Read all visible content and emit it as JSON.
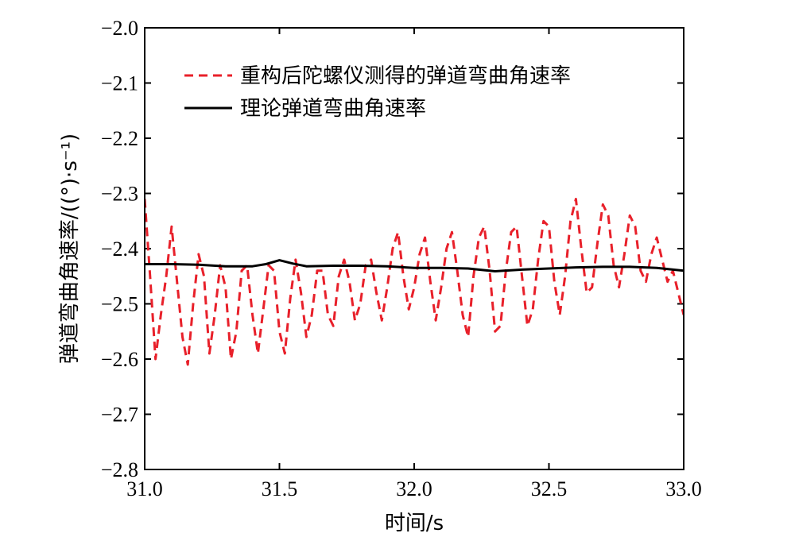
{
  "chart_data": {
    "type": "line",
    "title": "",
    "xlabel": "时间/s",
    "ylabel": "弹道弯曲角速率/((°)·s⁻¹)",
    "xlim": [
      31.0,
      33.0
    ],
    "ylim": [
      -2.8,
      -2.0
    ],
    "x_ticks": [
      "31.0",
      "31.5",
      "32.0",
      "32.5",
      "33.0"
    ],
    "y_ticks": [
      "−2.0",
      "−2.1",
      "−2.2",
      "−2.3",
      "−2.4",
      "−2.5",
      "−2.6",
      "−2.7",
      "−2.8"
    ],
    "grid": false,
    "legend_position": "top-right",
    "series": [
      {
        "name": "重构后陀螺仪测得的弹道弯曲角速率",
        "color": "#e8202a",
        "style": "dashed",
        "x": [
          31.0,
          31.02,
          31.04,
          31.06,
          31.08,
          31.1,
          31.12,
          31.14,
          31.16,
          31.18,
          31.2,
          31.22,
          31.24,
          31.26,
          31.28,
          31.3,
          31.32,
          31.34,
          31.36,
          31.38,
          31.4,
          31.42,
          31.44,
          31.46,
          31.48,
          31.5,
          31.52,
          31.54,
          31.56,
          31.58,
          31.6,
          31.62,
          31.64,
          31.66,
          31.68,
          31.7,
          31.72,
          31.74,
          31.76,
          31.78,
          31.8,
          31.82,
          31.84,
          31.86,
          31.88,
          31.9,
          31.92,
          31.94,
          31.96,
          31.98,
          32.0,
          32.02,
          32.04,
          32.06,
          32.08,
          32.1,
          32.12,
          32.14,
          32.16,
          32.18,
          32.2,
          32.22,
          32.24,
          32.26,
          32.28,
          32.3,
          32.32,
          32.34,
          32.36,
          32.38,
          32.4,
          32.42,
          32.44,
          32.46,
          32.48,
          32.5,
          32.52,
          32.54,
          32.56,
          32.58,
          32.6,
          32.62,
          32.64,
          32.66,
          32.68,
          32.7,
          32.72,
          32.74,
          32.76,
          32.78,
          32.8,
          32.82,
          32.84,
          32.86,
          32.88,
          32.9,
          32.92,
          32.94,
          32.96,
          32.98,
          33.0
        ],
        "values": [
          -2.31,
          -2.45,
          -2.6,
          -2.52,
          -2.45,
          -2.36,
          -2.46,
          -2.56,
          -2.61,
          -2.5,
          -2.41,
          -2.45,
          -2.59,
          -2.52,
          -2.43,
          -2.47,
          -2.6,
          -2.55,
          -2.44,
          -2.43,
          -2.52,
          -2.59,
          -2.51,
          -2.43,
          -2.44,
          -2.55,
          -2.59,
          -2.49,
          -2.42,
          -2.48,
          -2.56,
          -2.52,
          -2.44,
          -2.44,
          -2.52,
          -2.54,
          -2.45,
          -2.42,
          -2.46,
          -2.53,
          -2.5,
          -2.43,
          -2.42,
          -2.48,
          -2.53,
          -2.47,
          -2.4,
          -2.37,
          -2.45,
          -2.51,
          -2.47,
          -2.41,
          -2.38,
          -2.46,
          -2.53,
          -2.47,
          -2.4,
          -2.37,
          -2.44,
          -2.52,
          -2.56,
          -2.45,
          -2.38,
          -2.36,
          -2.44,
          -2.55,
          -2.54,
          -2.44,
          -2.37,
          -2.36,
          -2.45,
          -2.54,
          -2.51,
          -2.42,
          -2.35,
          -2.36,
          -2.46,
          -2.52,
          -2.45,
          -2.35,
          -2.31,
          -2.4,
          -2.48,
          -2.47,
          -2.39,
          -2.32,
          -2.34,
          -2.43,
          -2.47,
          -2.41,
          -2.34,
          -2.36,
          -2.44,
          -2.46,
          -2.41,
          -2.38,
          -2.42,
          -2.46,
          -2.44,
          -2.48,
          -2.52
        ]
      },
      {
        "name": "理论弹道弯曲角速率",
        "color": "#000000",
        "style": "solid",
        "x": [
          31.0,
          31.1,
          31.2,
          31.3,
          31.4,
          31.45,
          31.5,
          31.55,
          31.6,
          31.7,
          31.8,
          31.9,
          32.0,
          32.1,
          32.2,
          32.3,
          32.4,
          32.5,
          32.6,
          32.7,
          32.8,
          32.9,
          33.0
        ],
        "values": [
          -2.428,
          -2.428,
          -2.429,
          -2.432,
          -2.432,
          -2.428,
          -2.421,
          -2.427,
          -2.432,
          -2.431,
          -2.431,
          -2.432,
          -2.435,
          -2.435,
          -2.436,
          -2.441,
          -2.438,
          -2.436,
          -2.434,
          -2.433,
          -2.433,
          -2.435,
          -2.44
        ]
      }
    ]
  }
}
